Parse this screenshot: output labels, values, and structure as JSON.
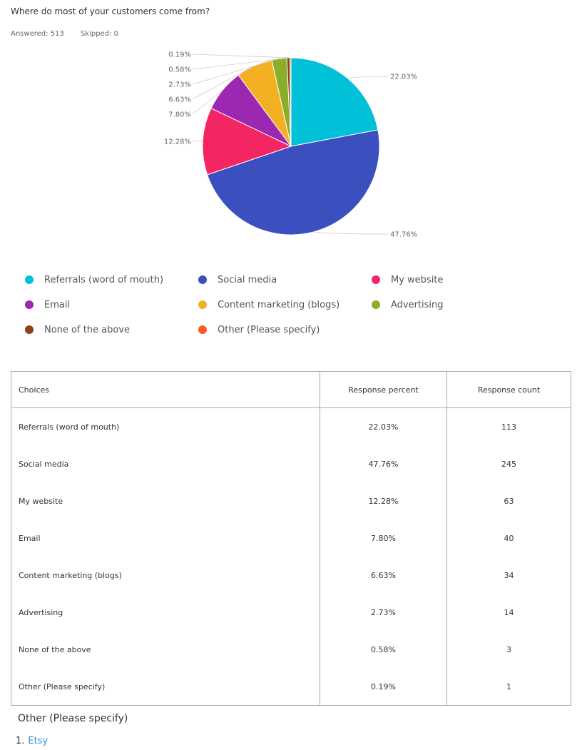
{
  "question": "Where do most of your customers come from?",
  "stats": {
    "answered": "Answered: 513",
    "skipped": "Skipped: 0"
  },
  "chart_data": {
    "type": "pie",
    "categories": [
      "Referrals (word of mouth)",
      "Social media",
      "My website",
      "Email",
      "Content marketing (blogs)",
      "Advertising",
      "None of the above",
      "Other (Please specify)"
    ],
    "values": [
      22.03,
      47.76,
      12.28,
      7.8,
      6.63,
      2.73,
      0.58,
      0.19
    ],
    "labels": [
      "22.03%",
      "47.76%",
      "12.28%",
      "7.80%",
      "6.63%",
      "2.73%",
      "0.58%",
      "0.19%"
    ],
    "colors": [
      "#00c1d8",
      "#3b4fbf",
      "#f32563",
      "#9c27b0",
      "#f4b023",
      "#8bae2a",
      "#8b4513",
      "#ff5722"
    ],
    "legend": "bottom"
  },
  "table": {
    "headers": [
      "Choices",
      "Response percent",
      "Response count"
    ],
    "rows": [
      [
        "Referrals (word of mouth)",
        "22.03%",
        "113"
      ],
      [
        "Social media",
        "47.76%",
        "245"
      ],
      [
        "My website",
        "12.28%",
        "63"
      ],
      [
        "Email",
        "7.80%",
        "40"
      ],
      [
        "Content marketing (blogs)",
        "6.63%",
        "34"
      ],
      [
        "Advertising",
        "2.73%",
        "14"
      ],
      [
        "None of the above",
        "0.58%",
        "3"
      ],
      [
        "Other (Please specify)",
        "0.19%",
        "1"
      ]
    ]
  },
  "other": {
    "title": "Other (Please specify)",
    "items": [
      {
        "number": "1.",
        "text": "Etsy"
      }
    ]
  }
}
